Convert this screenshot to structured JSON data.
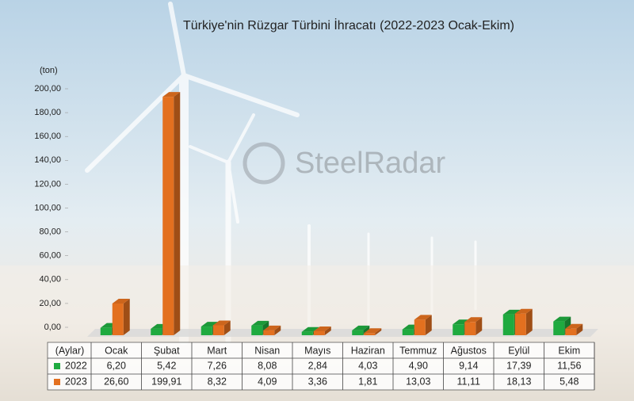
{
  "chart_data": {
    "type": "bar",
    "title": "Türkiye'nin Rüzgar Türbini İhracatı (2022-2023 Ocak-Ekim)",
    "y_label": "(ton)",
    "x_label": "(Aylar)",
    "watermark": "SteelRadar",
    "categories": [
      "Ocak",
      "Şubat",
      "Mart",
      "Nisan",
      "Mayıs",
      "Haziran",
      "Temmuz",
      "Ağustos",
      "Eylül",
      "Ekim"
    ],
    "series": [
      {
        "name": "2022",
        "color": "#1faa3f",
        "values": [
          6.2,
          5.42,
          7.26,
          8.08,
          2.84,
          4.03,
          4.9,
          9.14,
          17.39,
          11.56
        ],
        "value_labels": [
          "6,20",
          "5,42",
          "7,26",
          "8,08",
          "2,84",
          "4,03",
          "4,90",
          "9,14",
          "17,39",
          "11,56"
        ]
      },
      {
        "name": "2023",
        "color": "#e3701f",
        "values": [
          26.6,
          199.91,
          8.32,
          4.09,
          3.36,
          1.81,
          13.03,
          11.11,
          18.13,
          5.48
        ],
        "value_labels": [
          "26,60",
          "199,91",
          "8,32",
          "4,09",
          "3,36",
          "1,81",
          "13,03",
          "11,11",
          "18,13",
          "5,48"
        ]
      }
    ],
    "ylim": [
      0,
      200
    ],
    "yticks": [
      {
        "value": 0,
        "label": "0,00"
      },
      {
        "value": 20,
        "label": "20,00"
      },
      {
        "value": 40,
        "label": "40,00"
      },
      {
        "value": 60,
        "label": "60,00"
      },
      {
        "value": 80,
        "label": "80,00"
      },
      {
        "value": 100,
        "label": "100,00"
      },
      {
        "value": 120,
        "label": "120,00"
      },
      {
        "value": 140,
        "label": "140,00"
      },
      {
        "value": 160,
        "label": "160,00"
      },
      {
        "value": 180,
        "label": "180,00"
      },
      {
        "value": 200,
        "label": "200,00"
      }
    ]
  }
}
